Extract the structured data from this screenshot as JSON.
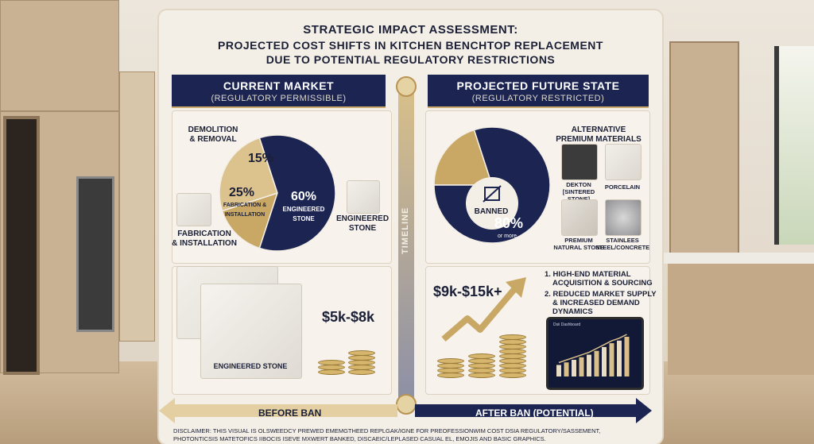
{
  "title": {
    "line1": "STRATEGIC IMPACT ASSESSMENT:",
    "line2": "PROJECTED COST SHIFTS IN KITCHEN BENCHTOP REPLACEMENT",
    "line3": "DUE TO POTENTIAL REGULATORY RESTRICTIONS"
  },
  "left": {
    "header": "CURRENT MARKET",
    "subheader": "(REGULATORY PERMISSIBLE)",
    "pie": {
      "segments": [
        {
          "label": "DEMOLITION & REMOVAL",
          "pct": "15%",
          "value": 15,
          "color": "#c9a866"
        },
        {
          "label": "FABRICATION & INSTALLATION",
          "pct": "25%",
          "value": 25,
          "color": "#dcc38e"
        },
        {
          "label": "ENGINEERED STONE",
          "pct": "60%",
          "value": 60,
          "color": "#1c2451"
        }
      ],
      "label_demolition": "DEMOLITION",
      "label_demolition2": "& REMOVAL",
      "label_fab_small1": "FABRICATION &",
      "label_fab_small2": "INSTALLATION",
      "label_eng_small1": "ENGINEERED",
      "label_eng_small2": "STONE"
    },
    "label_fab1": "FABRICATION",
    "label_fab2": "& INSTALLATION",
    "label_eng1": "ENGINEERED",
    "label_eng2": "STONE",
    "sample_label": "ENGINEERED STONE",
    "price": "$5k-$8k"
  },
  "right": {
    "header": "PROJECTED FUTURE STATE",
    "subheader": "(REGULATORY RESTRICTED)",
    "pie": {
      "segments": [
        {
          "label": "BANNED",
          "value": 20,
          "color": "#c9a866"
        },
        {
          "label": "ALTERNATIVE PREMIUM MATERIALS",
          "value": 80,
          "color": "#1c2451"
        }
      ],
      "banned": "BANNED",
      "pct": "80%",
      "pct_note": "or more"
    },
    "alt_title1": "ALTERNATIVE",
    "alt_title2": "PREMIUM MATERIALS",
    "materials": [
      {
        "name1": "DEKTON",
        "name2": "[SINTERED STONE]",
        "color": "#3b3b3b"
      },
      {
        "name1": "PORCELAIN",
        "name2": "",
        "color": "#e9e4dc"
      },
      {
        "name1": "PREMIUM",
        "name2": "NATURAL STONE",
        "color": "#d7d1c8"
      },
      {
        "name1": "STAINLEES",
        "name2": "STEEL/CONCRETE",
        "color": "#9a9a9c"
      }
    ],
    "price": "$9k-$15k+",
    "bullet1a": "1. HIGH-END MATERIAL",
    "bullet1b": "ACQUISITION & SOURCING",
    "bullet2a": "2. REDUCED MARKET SUPPLY",
    "bullet2b": "& INCREASED DEMAND",
    "bullet2c": "DYNAMICS",
    "tablet_title": "Dsii Dashboard",
    "tablet_bars": [
      18,
      22,
      26,
      30,
      34,
      40,
      46,
      52,
      56,
      62
    ]
  },
  "timeline_label": "TIMELINE",
  "before_label": "BEFORE BAN",
  "after_label": "AFTER BAN (POTENTIAL)",
  "disclaimer": {
    "line1": "DISCLAIMER: THIS VISUAL IS OLSWEEDCY PREWED EMEMGTHEED REPLGAK/IGNE FOR PREOFESSIONWIM COST DSIA REGULATORY/SASSEMENT,",
    "line2": "PHOTONTICSIS MATETOFICS IIBOCIS ISEVE MXWERT BANKED, DISCAEIC/LEPLASED CASUAL EL, EMOJIS AND BASIC GRAPHICS."
  },
  "colors": {
    "navy": "#1c2451",
    "gold": "#c9a866",
    "light_gold": "#dcc38e",
    "cream": "#f4efe6"
  }
}
